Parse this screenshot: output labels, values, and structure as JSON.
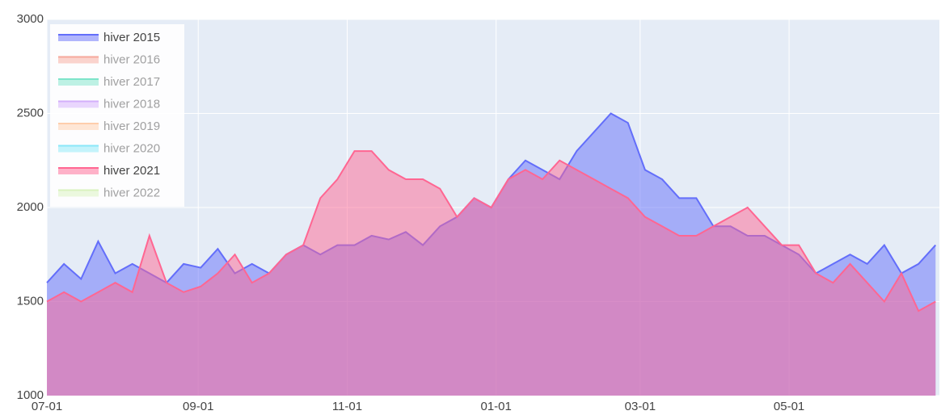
{
  "chart_data": {
    "type": "area",
    "x": [
      "07-01",
      "07-08",
      "07-15",
      "07-22",
      "07-29",
      "08-05",
      "08-12",
      "08-19",
      "08-26",
      "09-02",
      "09-09",
      "09-16",
      "09-23",
      "09-30",
      "10-07",
      "10-14",
      "10-21",
      "10-28",
      "11-04",
      "11-11",
      "11-18",
      "11-25",
      "12-02",
      "12-09",
      "12-16",
      "12-23",
      "12-30",
      "01-06",
      "01-13",
      "01-20",
      "01-27",
      "02-03",
      "02-10",
      "02-17",
      "02-24",
      "03-03",
      "03-10",
      "03-17",
      "03-24",
      "03-31",
      "04-07",
      "04-14",
      "04-21",
      "04-28",
      "05-05",
      "05-12",
      "05-19",
      "05-26",
      "06-02",
      "06-09",
      "06-16",
      "06-23",
      "06-30"
    ],
    "series": [
      {
        "name": "hiver 2015",
        "color": "#636efa",
        "visible": true,
        "values": [
          1600,
          1700,
          1620,
          1820,
          1650,
          1700,
          1650,
          1600,
          1700,
          1680,
          1780,
          1650,
          1700,
          1650,
          1750,
          1800,
          1750,
          1800,
          1800,
          1850,
          1830,
          1870,
          1800,
          1900,
          1950,
          2050,
          2000,
          2150,
          2250,
          2200,
          2150,
          2300,
          2400,
          2500,
          2450,
          2200,
          2150,
          2050,
          2050,
          1900,
          1900,
          1850,
          1850,
          1800,
          1750,
          1650,
          1700,
          1750,
          1700,
          1800,
          1650,
          1700,
          1800
        ]
      },
      {
        "name": "hiver 2016",
        "color": "#EF553B",
        "visible": "legendonly"
      },
      {
        "name": "hiver 2017",
        "color": "#00cc96",
        "visible": "legendonly"
      },
      {
        "name": "hiver 2018",
        "color": "#ab63fa",
        "visible": "legendonly"
      },
      {
        "name": "hiver 2019",
        "color": "#FFA15A",
        "visible": "legendonly"
      },
      {
        "name": "hiver 2020",
        "color": "#19d3f3",
        "visible": "legendonly"
      },
      {
        "name": "hiver 2021",
        "color": "#FF6692",
        "visible": true,
        "values": [
          1500,
          1550,
          1500,
          1550,
          1600,
          1550,
          1850,
          1600,
          1550,
          1580,
          1650,
          1750,
          1600,
          1650,
          1750,
          1800,
          2050,
          2150,
          2300,
          2300,
          2200,
          2150,
          2150,
          2100,
          1950,
          2050,
          2000,
          2150,
          2200,
          2150,
          2250,
          2200,
          2150,
          2100,
          2050,
          1950,
          1900,
          1850,
          1850,
          1900,
          1950,
          2000,
          1900,
          1800,
          1800,
          1650,
          1600,
          1700,
          1600,
          1500,
          1650,
          1450,
          1500
        ]
      },
      {
        "name": "hiver 2022",
        "color": "#B6E880",
        "visible": "legendonly"
      }
    ],
    "xticks": [
      "07-01",
      "09-01",
      "11-01",
      "01-01",
      "03-01",
      "05-01"
    ],
    "ylim": [
      1000,
      3000
    ],
    "yticks": [
      1000,
      1500,
      2000,
      2500,
      3000
    ],
    "grid": true,
    "legend_position": "top-left"
  }
}
